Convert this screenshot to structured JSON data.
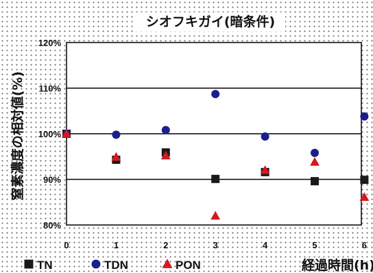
{
  "chart_data": {
    "type": "scatter",
    "title": "シオフキガイ(暗条件)",
    "xlabel": "経過時間(h)",
    "ylabel": "窒素濃度の相対値(%)",
    "x": [
      0,
      1,
      2,
      3,
      4,
      5,
      6
    ],
    "xlim": [
      0,
      6
    ],
    "ylim": [
      80,
      120
    ],
    "yticks": [
      "80%",
      "90%",
      "100%",
      "110%",
      "120%"
    ],
    "ytick_values": [
      80,
      90,
      100,
      110,
      120
    ],
    "xticks": [
      "0",
      "1",
      "2",
      "3",
      "4",
      "5",
      "6"
    ],
    "grid_y": [
      90,
      100,
      110
    ],
    "legend_position": "bottom",
    "series": [
      {
        "name": "TN",
        "marker": "square",
        "color": "#1a1a1a",
        "values": [
          100,
          94.3,
          95.9,
          90.1,
          91.6,
          89.6,
          89.9
        ]
      },
      {
        "name": "TDN",
        "marker": "circle",
        "color": "#1a1f8c",
        "values": [
          100,
          99.8,
          100.8,
          108.7,
          99.4,
          95.8,
          103.8
        ]
      },
      {
        "name": "PON",
        "marker": "triangle",
        "color": "#d41a20",
        "values": [
          100,
          94.9,
          95.2,
          82.0,
          92.0,
          93.8,
          86.1
        ]
      }
    ]
  }
}
